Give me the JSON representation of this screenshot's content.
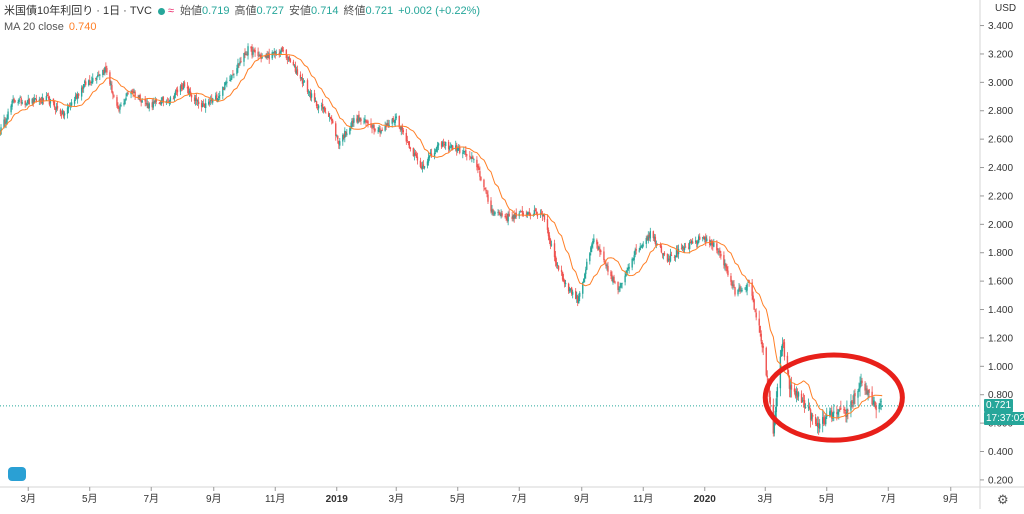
{
  "legend": {
    "symbol": "米国債10年利回り · 1日 · TVC",
    "open_label": "始値",
    "open": "0.719",
    "high_label": "高値",
    "high": "0.727",
    "low_label": "安値",
    "low": "0.714",
    "close_label": "終値",
    "close": "0.721",
    "change": "+0.002 (+0.22%)",
    "ma_name": "MA 20 close",
    "ma_value": "0.740"
  },
  "currency": "USD",
  "last_price_tag": "0.721",
  "countdown_tag": "17:37:02",
  "colors": {
    "up": "#26a69a",
    "down": "#ef5350",
    "ma": "#ff7f27",
    "highlight_ellipse": "#e8201a"
  },
  "icons": {
    "settings": "gear-icon",
    "logo": "tradingview-logo-icon"
  },
  "chart_data": {
    "type": "candlestick",
    "yaxis": {
      "min": 0.15,
      "max": 3.58,
      "ticks": [
        "0.200",
        "0.400",
        "0.600",
        "0.800",
        "1.000",
        "1.200",
        "1.400",
        "1.600",
        "1.800",
        "2.000",
        "2.200",
        "2.400",
        "2.600",
        "2.800",
        "3.000",
        "3.200",
        "3.400"
      ]
    },
    "xaxis": {
      "start": "2018-02-01",
      "end": "2020-09-30",
      "ticks": [
        {
          "date": "2018-03-01",
          "label": "3月"
        },
        {
          "date": "2018-05-01",
          "label": "5月"
        },
        {
          "date": "2018-07-01",
          "label": "7月"
        },
        {
          "date": "2018-09-01",
          "label": "9月"
        },
        {
          "date": "2018-11-01",
          "label": "11月"
        },
        {
          "date": "2019-01-01",
          "label": "2019"
        },
        {
          "date": "2019-03-01",
          "label": "3月"
        },
        {
          "date": "2019-05-01",
          "label": "5月"
        },
        {
          "date": "2019-07-01",
          "label": "7月"
        },
        {
          "date": "2019-09-01",
          "label": "9月"
        },
        {
          "date": "2019-11-01",
          "label": "11月"
        },
        {
          "date": "2020-01-01",
          "label": "2020"
        },
        {
          "date": "2020-03-01",
          "label": "3月"
        },
        {
          "date": "2020-05-01",
          "label": "5月"
        },
        {
          "date": "2020-07-01",
          "label": "7月"
        },
        {
          "date": "2020-09-01",
          "label": "9月"
        }
      ]
    },
    "close_path": [
      [
        "2018-02-01",
        2.65
      ],
      [
        "2018-02-15",
        2.88
      ],
      [
        "2018-03-01",
        2.86
      ],
      [
        "2018-03-20",
        2.88
      ],
      [
        "2018-04-05",
        2.77
      ],
      [
        "2018-04-25",
        2.98
      ],
      [
        "2018-05-17",
        3.1
      ],
      [
        "2018-05-29",
        2.79
      ],
      [
        "2018-06-10",
        2.95
      ],
      [
        "2018-06-28",
        2.84
      ],
      [
        "2018-07-20",
        2.88
      ],
      [
        "2018-08-01",
        2.98
      ],
      [
        "2018-08-20",
        2.82
      ],
      [
        "2018-09-05",
        2.9
      ],
      [
        "2018-09-20",
        3.07
      ],
      [
        "2018-10-05",
        3.23
      ],
      [
        "2018-10-20",
        3.17
      ],
      [
        "2018-11-08",
        3.22
      ],
      [
        "2018-11-25",
        3.05
      ],
      [
        "2018-12-10",
        2.86
      ],
      [
        "2018-12-24",
        2.78
      ],
      [
        "2019-01-03",
        2.58
      ],
      [
        "2019-01-20",
        2.75
      ],
      [
        "2019-02-15",
        2.66
      ],
      [
        "2019-03-01",
        2.75
      ],
      [
        "2019-03-25",
        2.4
      ],
      [
        "2019-04-15",
        2.57
      ],
      [
        "2019-05-05",
        2.52
      ],
      [
        "2019-05-20",
        2.42
      ],
      [
        "2019-06-03",
        2.1
      ],
      [
        "2019-06-20",
        2.05
      ],
      [
        "2019-07-10",
        2.08
      ],
      [
        "2019-07-25",
        2.07
      ],
      [
        "2019-08-05",
        1.76
      ],
      [
        "2019-08-15",
        1.59
      ],
      [
        "2019-08-28",
        1.47
      ],
      [
        "2019-09-13",
        1.9
      ],
      [
        "2019-09-25",
        1.7
      ],
      [
        "2019-10-08",
        1.53
      ],
      [
        "2019-10-20",
        1.76
      ],
      [
        "2019-11-08",
        1.94
      ],
      [
        "2019-11-25",
        1.76
      ],
      [
        "2019-12-10",
        1.82
      ],
      [
        "2019-12-30",
        1.91
      ],
      [
        "2020-01-15",
        1.82
      ],
      [
        "2020-01-31",
        1.52
      ],
      [
        "2020-02-14",
        1.58
      ],
      [
        "2020-02-28",
        1.13
      ],
      [
        "2020-03-09",
        0.54
      ],
      [
        "2020-03-18",
        1.18
      ],
      [
        "2020-03-25",
        0.86
      ],
      [
        "2020-04-10",
        0.73
      ],
      [
        "2020-04-21",
        0.57
      ],
      [
        "2020-05-05",
        0.66
      ],
      [
        "2020-05-20",
        0.67
      ],
      [
        "2020-06-05",
        0.9
      ],
      [
        "2020-06-15",
        0.73
      ],
      [
        "2020-06-25",
        0.72
      ]
    ],
    "series": [
      {
        "name": "MA 20 close",
        "color": "#ff7f27",
        "kind": "line"
      }
    ],
    "last_price": 0.721,
    "grid": false,
    "annotation": {
      "shape": "ellipse",
      "from": "2020-03-01",
      "to": "2020-07-15",
      "ymin": 0.48,
      "ymax": 1.08,
      "color": "#e8201a"
    }
  }
}
